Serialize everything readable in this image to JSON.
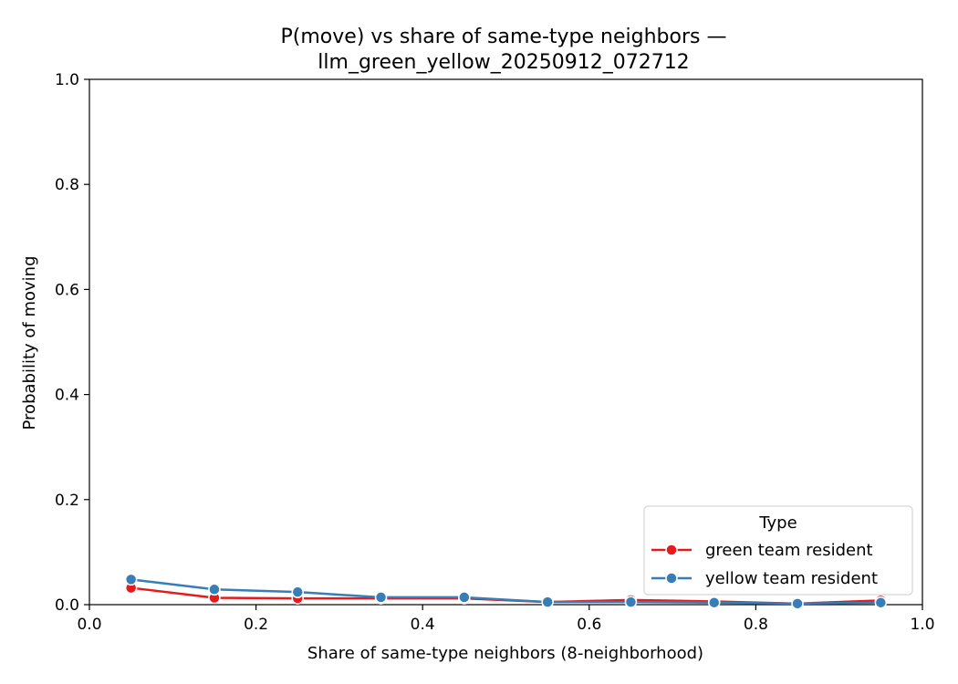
{
  "chart_data": {
    "type": "line",
    "title_line1": "P(move) vs share of same-type neighbors —",
    "title_line2": "llm_green_yellow_20250912_072712",
    "xlabel": "Share of same-type neighbors (8-neighborhood)",
    "ylabel": "Probability of moving",
    "xlim": [
      0.0,
      1.0
    ],
    "ylim": [
      0.0,
      1.0
    ],
    "x_ticks": [
      "0.0",
      "0.2",
      "0.4",
      "0.6",
      "0.8",
      "1.0"
    ],
    "y_ticks": [
      "0.0",
      "0.2",
      "0.4",
      "0.6",
      "0.8",
      "1.0"
    ],
    "grid": false,
    "legend": {
      "title": "Type",
      "placement": "lower-right"
    },
    "x": [
      0.05,
      0.15,
      0.25,
      0.35,
      0.45,
      0.55,
      0.65,
      0.75,
      0.85,
      0.95
    ],
    "series": [
      {
        "name": "green team resident",
        "color": "#e41a1c",
        "values": [
          0.032,
          0.013,
          0.012,
          0.012,
          0.012,
          0.005,
          0.009,
          0.006,
          0.002,
          0.008
        ]
      },
      {
        "name": "yellow team resident",
        "color": "#377eb8",
        "values": [
          0.048,
          0.029,
          0.024,
          0.014,
          0.014,
          0.005,
          0.005,
          0.004,
          0.002,
          0.004
        ]
      }
    ]
  }
}
